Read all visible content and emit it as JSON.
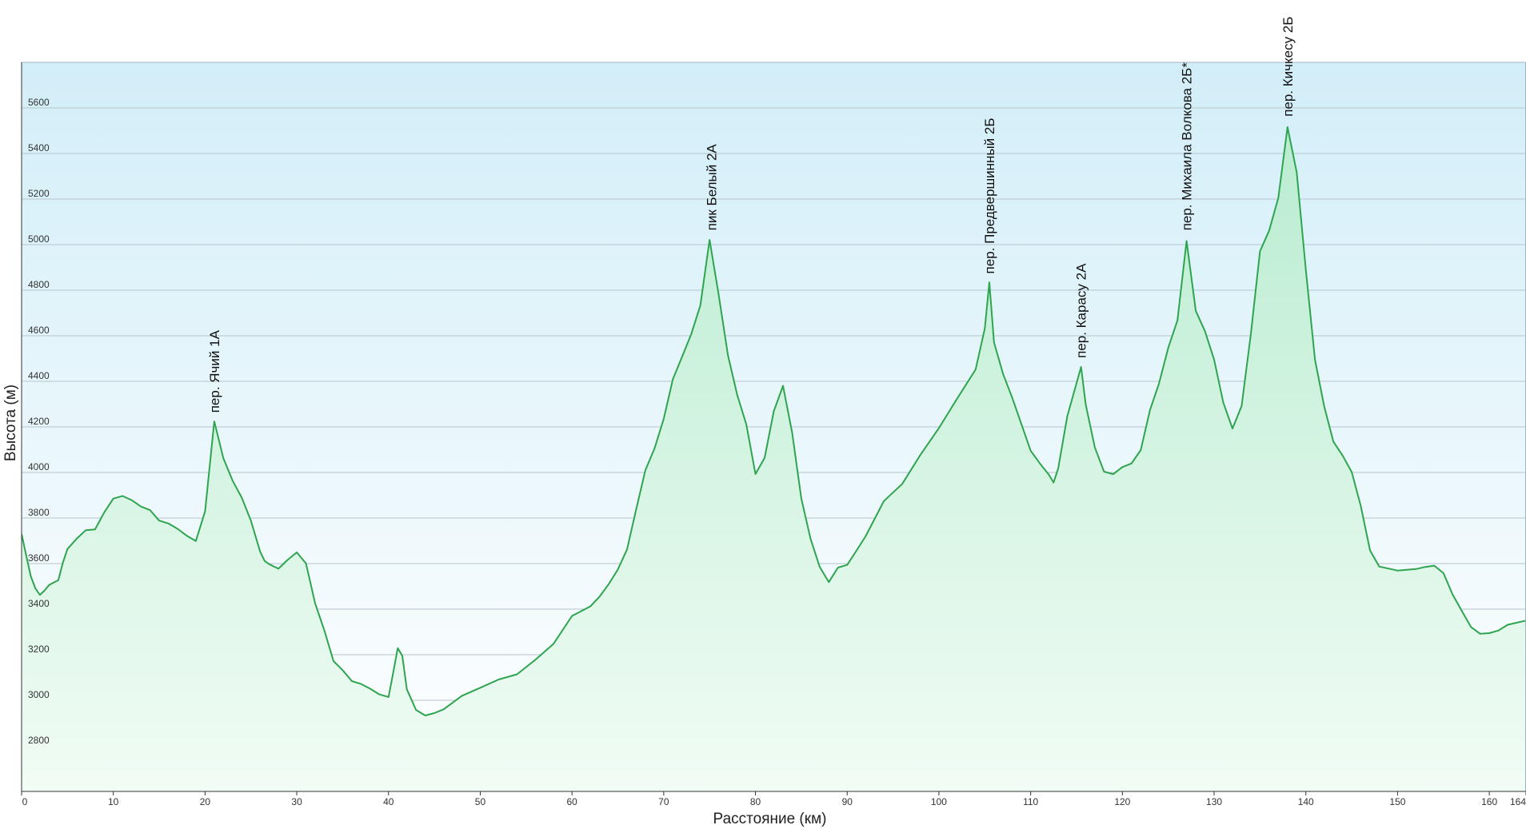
{
  "chart_data": {
    "type": "area",
    "title": "",
    "xlabel": "Расстояние (км)",
    "ylabel": "Высота (м)",
    "xlim": [
      0,
      164
    ],
    "ylim": [
      2600,
      5800
    ],
    "grid": true,
    "x_ticks": [
      0,
      10,
      20,
      30,
      40,
      50,
      60,
      70,
      80,
      90,
      100,
      110,
      120,
      130,
      140,
      150,
      160,
      164
    ],
    "y_ticks": [
      2800,
      3000,
      3200,
      3400,
      3600,
      3800,
      4000,
      4200,
      4400,
      4600,
      4800,
      5000,
      5200,
      5400,
      5600
    ],
    "colors": {
      "line": "#2ea44f",
      "fill_top": "#b9ecd0",
      "fill_bottom": "#f1fcf5",
      "bg_top": "#d2eef8",
      "bg_bottom": "#ffffff"
    },
    "series": [
      {
        "x": [
          0,
          0.5,
          1,
          1.5,
          2,
          2.5,
          3,
          4,
          4.5,
          5,
          6,
          7,
          8,
          9,
          10,
          11,
          12,
          13,
          14,
          15,
          16,
          17,
          18,
          19,
          20,
          21,
          22,
          23,
          24,
          25,
          26,
          26.5,
          27,
          28,
          29,
          30,
          31,
          32,
          33,
          34,
          35,
          36,
          37,
          38,
          39,
          40,
          40.5,
          41,
          41.5,
          42,
          43,
          44,
          45,
          46,
          48,
          50,
          52,
          54,
          56,
          58,
          60,
          62,
          63,
          64,
          65,
          66,
          67,
          68,
          69,
          70,
          71,
          72,
          73,
          74,
          75,
          76,
          77,
          78,
          79,
          80,
          81,
          82,
          83,
          84,
          85,
          86,
          87,
          88,
          88.5,
          89,
          90,
          91,
          92,
          94,
          96,
          98,
          100,
          102,
          104,
          105,
          105.5,
          106,
          107,
          108,
          110,
          111,
          112,
          112.5,
          113,
          114,
          115,
          115.5,
          116,
          117,
          118,
          119,
          120,
          121,
          122,
          123,
          124,
          125,
          126,
          127,
          128,
          129,
          130,
          131,
          132,
          133,
          134,
          135,
          136,
          137,
          138,
          139,
          140,
          141,
          142,
          143,
          144,
          145,
          146,
          147,
          148,
          150,
          152,
          153,
          154,
          155,
          156,
          157,
          158,
          159,
          160,
          161,
          162,
          164
        ],
        "y": [
          3730,
          3640,
          3550,
          3500,
          3470,
          3490,
          3510,
          3530,
          3600,
          3660,
          3700,
          3740,
          3740,
          3820,
          3880,
          3900,
          3880,
          3860,
          3840,
          3800,
          3780,
          3760,
          3720,
          3700,
          3820,
          4220,
          4050,
          3960,
          3880,
          3790,
          3650,
          3620,
          3600,
          3590,
          3620,
          3660,
          3600,
          3430,
          3300,
          3170,
          3120,
          3080,
          3060,
          3050,
          3020,
          3020,
          3120,
          3240,
          3200,
          3060,
          2960,
          2940,
          2940,
          2960,
          3010,
          3050,
          3080,
          3110,
          3170,
          3250,
          3370,
          3420,
          3460,
          3520,
          3580,
          3670,
          3840,
          4010,
          4100,
          4230,
          4400,
          4500,
          4600,
          4730,
          5020,
          4780,
          4520,
          4350,
          4220,
          4000,
          4070,
          4270,
          4380,
          4170,
          3880,
          3700,
          3580,
          3510,
          3550,
          3580,
          3600,
          3660,
          3730,
          3880,
          3960,
          4080,
          4200,
          4320,
          4450,
          4620,
          4830,
          4560,
          4430,
          4320,
          4100,
          4040,
          4000,
          3960,
          4030,
          4250,
          4400,
          4460,
          4300,
          4100,
          4000,
          3980,
          4020,
          4030,
          4100,
          4270,
          4400,
          4550,
          4680,
          5020,
          4720,
          4620,
          4500,
          4300,
          4190,
          4280,
          4600,
          4960,
          5060,
          5200,
          5520,
          5320,
          4900,
          4500,
          4300,
          4140,
          4080,
          4000,
          3850,
          3650,
          3580,
          3560,
          3570,
          3580,
          3590,
          3560,
          3470,
          3400,
          3330,
          3300,
          3300,
          3310,
          3330,
          3350
        ]
      }
    ],
    "annotations": [
      {
        "x": 21,
        "y": 4220,
        "text": "пер. Ячий 1А"
      },
      {
        "x": 75.2,
        "y": 5020,
        "text": "пик Белый 2А"
      },
      {
        "x": 105.5,
        "y": 4830,
        "text": "пер. Предвершинный 2Б"
      },
      {
        "x": 115.5,
        "y": 4460,
        "text": "пер. Карасу 2А"
      },
      {
        "x": 127,
        "y": 5020,
        "text": "пер. Михаила Волкова 2Б*"
      },
      {
        "x": 138,
        "y": 5520,
        "text": "пер. Кичкесу 2Б"
      }
    ]
  }
}
